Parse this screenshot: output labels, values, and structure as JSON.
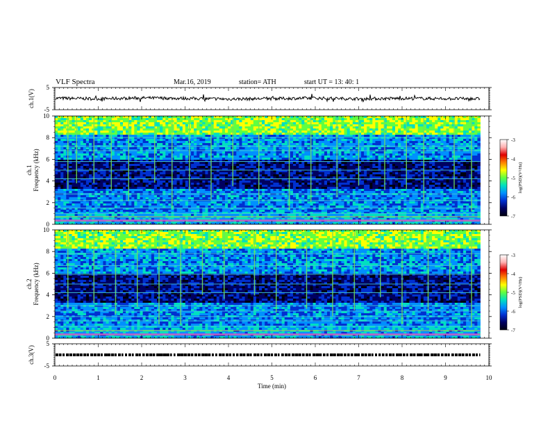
{
  "header": {
    "title": "VLF  Spectra",
    "date": "Mar.16, 2019",
    "station": "station= ATH",
    "start": "start  UT  =    13: 40: 1"
  },
  "colors": {
    "colormap": [
      "#000010",
      "#000060",
      "#0030d0",
      "#0090ff",
      "#00e0c0",
      "#60ff40",
      "#ffff00",
      "#ff8000",
      "#e00000",
      "#ffb0b0",
      "#ffffff"
    ],
    "trace": "#000000",
    "axis": "#000000"
  },
  "chart_data": [
    {
      "type": "line",
      "name": "ch1-waveform",
      "ylabel": "ch.1(V)",
      "ylim": [
        -5,
        5
      ],
      "yticks": [
        "5",
        "-5"
      ],
      "trace_level": 0,
      "x": [
        0,
        1,
        2,
        3,
        4,
        5,
        6,
        7,
        8,
        9,
        9.8
      ],
      "y": [
        0.2,
        -0.1,
        0.3,
        0.1,
        -0.2,
        0.0,
        0.2,
        -0.1,
        0.1,
        0.0,
        -0.1
      ]
    },
    {
      "type": "heatmap",
      "name": "ch1-spectrogram",
      "ylabel": "ch.1\nFrequency (kHz)",
      "ylim": [
        0,
        10
      ],
      "yticks": [
        "0",
        "2",
        "4",
        "6",
        "8",
        "10"
      ],
      "colorbar": {
        "label": "log(PSD)(V²/Hz)",
        "range": [
          -7,
          -3
        ],
        "ticks": [
          "-3",
          "-4",
          "-5",
          "-6",
          "-7"
        ]
      },
      "x_extent": [
        0,
        9.8
      ],
      "band_levels_khz": [
        0.3,
        0.7,
        1.0,
        1.5,
        2.2,
        2.8,
        4.2,
        5.0,
        5.8,
        6.8,
        7.2,
        8.0
      ],
      "sferic_times_min": [
        0.3,
        0.5,
        0.9,
        1.3,
        1.7,
        2.3,
        2.7,
        3.1,
        3.6,
        4.1,
        4.7,
        5.4,
        5.9,
        6.5,
        7.0,
        7.6,
        8.1,
        8.5,
        9.2,
        9.6
      ]
    },
    {
      "type": "heatmap",
      "name": "ch2-spectrogram",
      "ylabel": "ch.2\nFrequency (kHz)",
      "ylim": [
        0,
        10
      ],
      "yticks": [
        "0",
        "2",
        "4",
        "6",
        "8",
        "10"
      ],
      "colorbar": {
        "label": "log(PSD)(V²/Hz)",
        "range": [
          -7,
          -3
        ],
        "ticks": [
          "-3",
          "-4",
          "-5",
          "-6",
          "-7"
        ]
      },
      "x_extent": [
        0,
        9.8
      ],
      "band_levels_khz": [
        0.3,
        0.7,
        1.1,
        1.6,
        2.0,
        2.5,
        3.0,
        4.2,
        5.0,
        5.9,
        6.7,
        7.8
      ],
      "sferic_times_min": [
        0.3,
        0.9,
        1.4,
        1.9,
        2.4,
        2.9,
        3.4,
        3.9,
        4.6,
        5.1,
        5.8,
        6.4,
        6.9,
        7.5,
        8.0,
        8.6,
        9.1,
        9.6
      ]
    },
    {
      "type": "line",
      "name": "ch3-waveform",
      "ylabel": "ch.3(V)",
      "ylim": [
        -5,
        5
      ],
      "yticks": [
        "5",
        "-5"
      ],
      "trace_level": 0,
      "x": [
        0,
        9.8
      ],
      "y": [
        0,
        0
      ]
    }
  ],
  "xaxis": {
    "label": "Time  (min)",
    "range": [
      0,
      10
    ],
    "ticks": [
      "0",
      "1",
      "2",
      "3",
      "4",
      "5",
      "6",
      "7",
      "8",
      "9",
      "10"
    ]
  }
}
